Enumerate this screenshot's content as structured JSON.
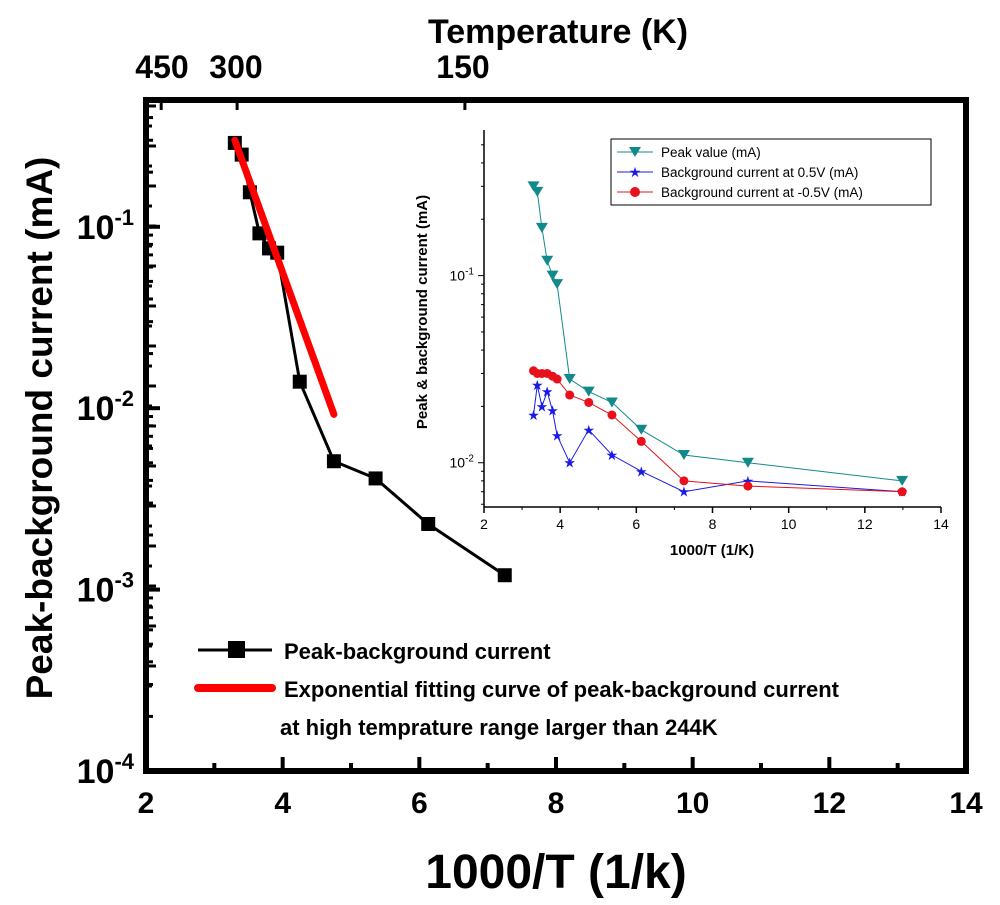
{
  "colors": {
    "main_series": "#000000",
    "fit_curve": "#ff0000",
    "peak": "#138a8a",
    "bg_pos": "#1a1ae6",
    "bg_neg": "#e8101a"
  },
  "chart_data": [
    {
      "type": "line",
      "role": "main",
      "title": "",
      "xlabel": "1000/T (1/k)",
      "ylabel": "Peak-background current (mA)",
      "top_axis_label": "Temperature (K)",
      "top_ticks": [
        {
          "x": 2.2222,
          "label": "450"
        },
        {
          "x": 3.3333,
          "label": "300"
        },
        {
          "x": 6.6667,
          "label": "150"
        }
      ],
      "x_scale": "linear",
      "y_scale": "log",
      "xlim": [
        2,
        14
      ],
      "ylim": [
        0.0001,
        0.5
      ],
      "x_ticks": [
        2,
        4,
        6,
        8,
        10,
        12,
        14
      ],
      "x_tick_labels": [
        "2",
        "4",
        "6",
        "8",
        "10",
        "12",
        "14"
      ],
      "y_ticks": [
        {
          "value": 0.1,
          "base": "10",
          "exp": "-1"
        },
        {
          "value": 0.01,
          "base": "10",
          "exp": "-2"
        },
        {
          "value": 0.001,
          "base": "10",
          "exp": "-3"
        },
        {
          "value": 0.0001,
          "base": "10",
          "exp": "-4"
        }
      ],
      "series": [
        {
          "name": "Peak-background current",
          "marker": "square",
          "color": "#000000",
          "x": [
            3.3,
            3.4,
            3.52,
            3.66,
            3.8,
            3.92,
            4.25,
            4.75,
            5.36,
            6.13,
            7.25
          ],
          "y": [
            0.29,
            0.25,
            0.155,
            0.092,
            0.076,
            0.072,
            0.014,
            0.0051,
            0.0041,
            0.0023,
            0.0012
          ]
        },
        {
          "name": "Exponential fitting curve of peak-background current",
          "name_line2": "at high temprature range larger than 244K",
          "marker": "none",
          "color": "#ff0000",
          "fit": {
            "a": 0.3,
            "b": -2.4,
            "x0": 3.3,
            "x_range": [
              3.3,
              4.75
            ]
          }
        }
      ],
      "legend": "bottom-left"
    },
    {
      "type": "line",
      "role": "inset",
      "title": "",
      "xlabel": "1000/T (1/K)",
      "ylabel": "Peak & background current (mA)",
      "x_scale": "linear",
      "y_scale": "log",
      "xlim": [
        2,
        14
      ],
      "ylim": [
        0.0058,
        0.6
      ],
      "x_ticks": [
        2,
        4,
        6,
        8,
        10,
        12,
        14
      ],
      "x_tick_labels": [
        "2",
        "4",
        "6",
        "8",
        "10",
        "12",
        "14"
      ],
      "y_ticks": [
        {
          "value": 0.1,
          "base": "10",
          "exp": "-1"
        },
        {
          "value": 0.01,
          "base": "10",
          "exp": "-2"
        }
      ],
      "series": [
        {
          "name": "Peak value (mA)",
          "marker": "triangle-down",
          "color": "#138a8a",
          "x": [
            3.3,
            3.4,
            3.52,
            3.66,
            3.8,
            3.92,
            4.25,
            4.75,
            5.36,
            6.13,
            7.25,
            8.93,
            12.98
          ],
          "y": [
            0.3,
            0.28,
            0.18,
            0.12,
            0.1,
            0.09,
            0.028,
            0.024,
            0.021,
            0.015,
            0.011,
            0.01,
            0.008
          ]
        },
        {
          "name": "Background current at 0.5V (mA)",
          "marker": "star",
          "color": "#1a1ae6",
          "x": [
            3.3,
            3.4,
            3.52,
            3.66,
            3.8,
            3.92,
            4.25,
            4.75,
            5.36,
            6.13,
            7.25,
            8.93,
            12.98
          ],
          "y": [
            0.018,
            0.026,
            0.02,
            0.024,
            0.019,
            0.014,
            0.01,
            0.015,
            0.011,
            0.009,
            0.007,
            0.008,
            0.007
          ]
        },
        {
          "name": "Background current at -0.5V (mA)",
          "marker": "circle",
          "color": "#e8101a",
          "x": [
            3.3,
            3.4,
            3.52,
            3.66,
            3.8,
            3.92,
            4.25,
            4.75,
            5.36,
            6.13,
            7.25,
            8.93,
            12.98
          ],
          "y": [
            0.031,
            0.03,
            0.03,
            0.03,
            0.029,
            0.028,
            0.023,
            0.021,
            0.018,
            0.013,
            0.008,
            0.0075,
            0.007
          ]
        }
      ],
      "legend": "top-right"
    }
  ]
}
